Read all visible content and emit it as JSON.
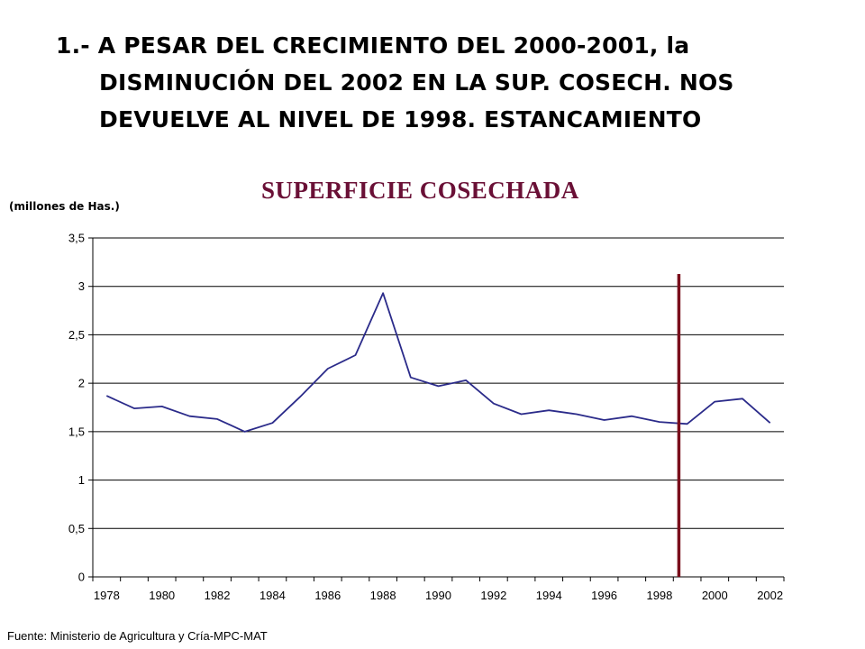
{
  "headline": {
    "line1": "1.- A PESAR DEL CRECIMIENTO DEL 2000-2001, la",
    "line2": "DISMINUCIÓN DEL  2002 EN LA SUP. COSECH. NOS",
    "line3": "DEVUELVE  AL NIVEL DE 1998. ESTANCAMIENTO"
  },
  "source": "Fuente: Ministerio de Agricultura y Cría-MPC-MAT",
  "chart_data": {
    "type": "line",
    "title": "SUPERFICIE COSECHADA",
    "ylabel": "(millones de Has.)",
    "xlabel": "",
    "x": [
      1978,
      1979,
      1980,
      1981,
      1982,
      1983,
      1984,
      1985,
      1986,
      1987,
      1988,
      1989,
      1990,
      1991,
      1992,
      1993,
      1994,
      1995,
      1996,
      1997,
      1998,
      1999,
      2000,
      2001,
      2002
    ],
    "series": [
      {
        "values": [
          1.87,
          1.74,
          1.76,
          1.66,
          1.63,
          1.5,
          1.59,
          1.86,
          2.15,
          2.29,
          2.93,
          2.06,
          1.97,
          2.03,
          1.79,
          1.68,
          1.72,
          1.68,
          1.62,
          1.66,
          1.6,
          1.58,
          1.81,
          1.84,
          1.59
        ]
      }
    ],
    "x_tick_labels": [
      "1978",
      "1980",
      "1982",
      "1984",
      "1986",
      "1988",
      "1990",
      "1992",
      "1994",
      "1996",
      "1998",
      "2000",
      "2002"
    ],
    "y_ticks": [
      0,
      0.5,
      1,
      1.5,
      2,
      2.5,
      3,
      3.5
    ],
    "y_tick_labels": [
      "0",
      "0,5",
      "1",
      "1,5",
      "2",
      "2,5",
      "3",
      "3,5"
    ],
    "ylim": [
      0,
      3.5
    ],
    "grid": true,
    "line_color": "#2b2b8a",
    "marker_line": {
      "x": 1998.7,
      "color": "#7a0f1c"
    }
  }
}
